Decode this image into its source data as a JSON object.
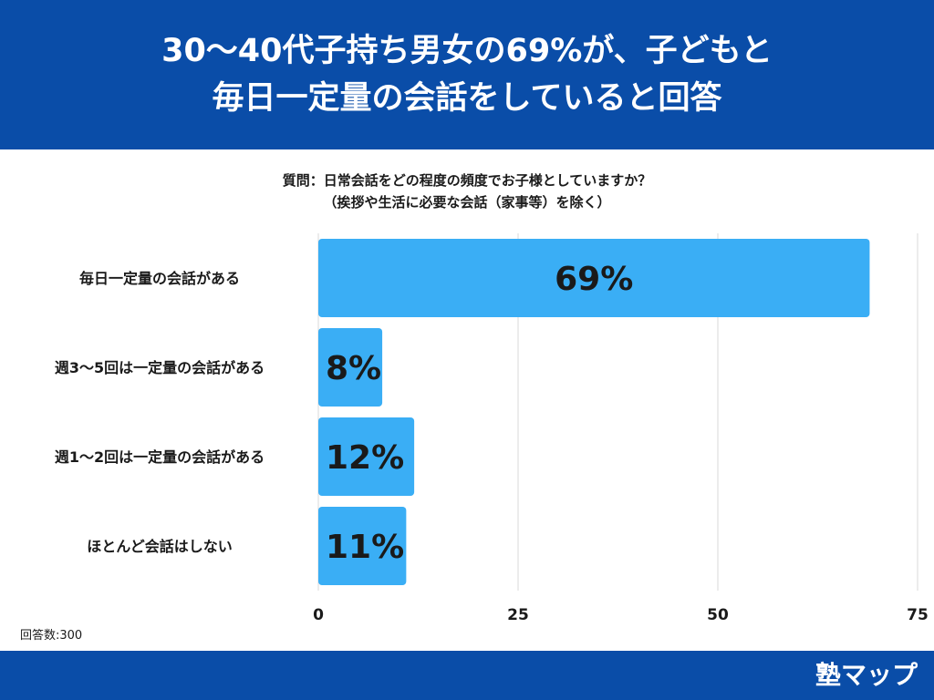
{
  "header": {
    "title_line1": "30〜40代子持ち男女の69%が、子どもと",
    "title_line2": "毎日一定量の会話をしていると回答"
  },
  "question": {
    "line1": "質問：日常会話をどの程度の頻度でお子様としていますか？",
    "line2": "（挨拶や生活に必要な会話（家事等）を除く）"
  },
  "chart_data": {
    "type": "bar",
    "orientation": "horizontal",
    "title": "質問：日常会話をどの程度の頻度でお子様としていますか？（挨拶や生活に必要な会話（家事等）を除く）",
    "categories": [
      "毎日一定量の会話がある",
      "週3〜5回は一定量の会話がある",
      "週1〜2回は一定量の会話がある",
      "ほとんど会話はしない"
    ],
    "values": [
      69,
      8,
      12,
      11
    ],
    "value_labels": [
      "69%",
      "8%",
      "12%",
      "11%"
    ],
    "xlim": [
      0,
      75
    ],
    "xticks": [
      0,
      25,
      50,
      75
    ],
    "xlabel": "",
    "ylabel": "",
    "grid": true
  },
  "colors": {
    "bar": "#3aaef5",
    "header_bg": "#0a4da8",
    "footer_bg": "#0a4da8",
    "grid": "#d9d9d9"
  },
  "sample_label": "回答数:300",
  "footer": {
    "brand": "塾マップ"
  }
}
